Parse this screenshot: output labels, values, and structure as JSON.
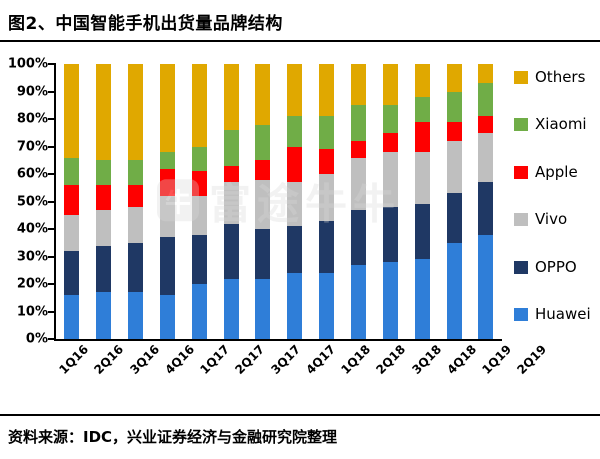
{
  "title": "图2、中国智能手机出货量品牌结构",
  "watermark": {
    "logo_glyph": "牛",
    "text": "富途牛牛"
  },
  "footer": {
    "source_text": "资料来源：IDC，兴业证券经济与金融研究院整理"
  },
  "chart_data": {
    "type": "bar",
    "stacked": true,
    "title": "中国智能手机出货量品牌结构",
    "xlabel": "",
    "ylabel": "",
    "ylim": [
      0,
      100
    ],
    "grid": false,
    "legend_position": "right",
    "y_ticks": [
      "0%",
      "10%",
      "20%",
      "30%",
      "40%",
      "50%",
      "60%",
      "70%",
      "80%",
      "90%",
      "100%"
    ],
    "categories": [
      "1Q16",
      "2Q16",
      "3Q16",
      "4Q16",
      "1Q17",
      "2Q17",
      "3Q17",
      "4Q17",
      "1Q18",
      "2Q18",
      "3Q18",
      "4Q18",
      "1Q19",
      "2Q19"
    ],
    "series": [
      {
        "name": "Huawei",
        "color": "#2f7ed8",
        "values": [
          16,
          17,
          17,
          16,
          20,
          22,
          22,
          24,
          24,
          27,
          28,
          29,
          35,
          38
        ]
      },
      {
        "name": "OPPO",
        "color": "#1f3864",
        "values": [
          16,
          17,
          18,
          21,
          18,
          20,
          18,
          17,
          19,
          20,
          20,
          20,
          18,
          19
        ]
      },
      {
        "name": "Vivo",
        "color": "#bfbfbf",
        "values": [
          13,
          13,
          13,
          15,
          14,
          15,
          18,
          16,
          17,
          19,
          20,
          19,
          19,
          18
        ]
      },
      {
        "name": "Apple",
        "color": "#fe0000",
        "values": [
          11,
          9,
          8,
          10,
          9,
          6,
          7,
          13,
          9,
          6,
          7,
          11,
          7,
          6
        ]
      },
      {
        "name": "Xiaomi",
        "color": "#70ad47",
        "values": [
          10,
          9,
          9,
          6,
          9,
          13,
          13,
          11,
          12,
          13,
          10,
          9,
          11,
          12
        ]
      },
      {
        "name": "Others",
        "color": "#e0a800",
        "values": [
          34,
          35,
          35,
          32,
          30,
          24,
          22,
          19,
          19,
          15,
          15,
          12,
          10,
          7
        ]
      }
    ],
    "legend": [
      "Others",
      "Xiaomi",
      "Apple",
      "Vivo",
      "OPPO",
      "Huawei"
    ]
  }
}
